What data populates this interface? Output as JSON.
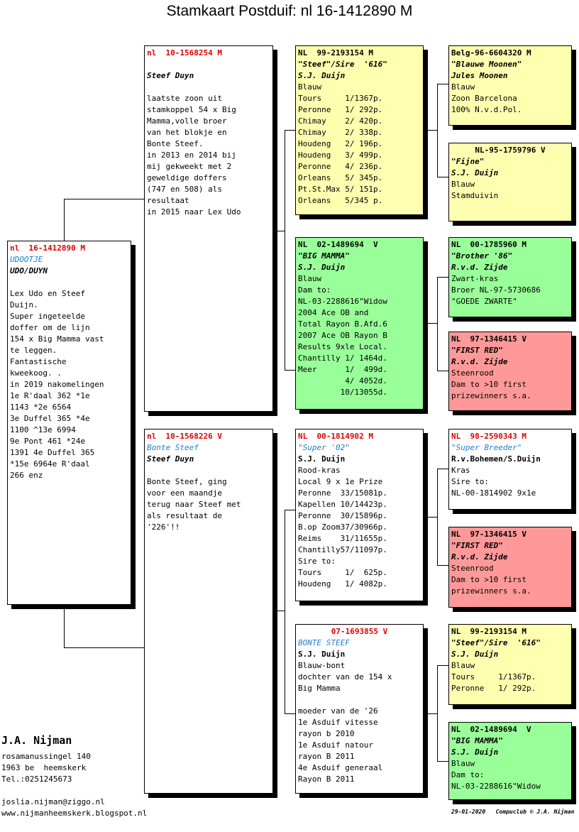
{
  "title": "Stamkaart Postduif: nl  16-1412890 M",
  "cards": {
    "main": [
      "nl  16-1412890 M",
      "UDOOTJE",
      "UDO/DUYN",
      "",
      "Lex Udo en Steef",
      "Duijn.",
      "Super ingeteelde",
      "doffer om de lijn",
      "154 x Big Mamma vast",
      "te leggen.",
      "Fantastische",
      "kweekoog. .",
      "in 2019 nakomelingen",
      "1e R'daal 362 *1e",
      "1143 *2e 6564",
      "3e Duffel 365 *4e",
      "1100 ^13e 6994",
      "9e Pont 461 *24e",
      "1391 4e Duffel 365",
      "*15e 6964e R'daal",
      "266 enz"
    ],
    "sire": [
      "nl  10-1568254 M",
      "",
      "Steef Duyn",
      "",
      "laatste zoon uit",
      "stamkoppel 54 x Big",
      "Mamma,volle broer",
      "van het blokje en",
      "Bonte Steef.",
      "in 2013 en 2014 bij",
      "mij gekweekt met 2",
      "geweldige doffers",
      "(747 en 508) als",
      "resultaat",
      "in 2015 naar Lex Udo"
    ],
    "dam": [
      "nl  10-1568226 V",
      "Bonte Steef",
      "Steef Duyn",
      "",
      "Bonte Steef, ging",
      "voor een maandje",
      "terug naar Steef met",
      "als resultaat de",
      "'226'!!"
    ],
    "ss": [
      "NL  99-2193154 M",
      "\"Steef\"/Sire  '616\"",
      "S.J. Duijn",
      "Blauw",
      "Tours     1/1367p.",
      "Peronne   1/ 292p.",
      "Chimay    2/ 420p.",
      "Chimay    2/ 338p.",
      "Houdeng   2/ 196p.",
      "Houdeng   3/ 499p.",
      "Peronne   4/ 236p.",
      "Orleans   5/ 345p.",
      "Pt.St.Max 5/ 151p.",
      "Orleans   5/345 p."
    ],
    "sd": [
      "NL  02-1489694  V",
      "\"BIG MAMMA\"",
      "S.J. Duijn",
      "Blauw",
      "Dam to:",
      "NL-03-2288616\"Widow",
      "2004 Ace OB and",
      "Total Rayon B.Afd.6",
      "2007 Ace OB Rayon B",
      "Results 9xle Local.",
      "Chantilly 1/ 1464d.",
      "Meer      1/  499d.",
      "          4/ 4052d.",
      "         10/13055d."
    ],
    "ds": [
      "NL  00-1814902 M",
      "\"Super '02\"",
      "S.J. Duijn",
      "Rood-kras",
      "Local 9 x 1e Prize",
      "Peronne  33/15081p.",
      "Kapellen 10/14423p.",
      "Peronne  30/15896p.",
      "B.op Zoom37/30966p.",
      "Reims    31/11655p.",
      "Chantilly57/11097p.",
      "Sire to:",
      "Tours     1/  625p.",
      "Houdeng   1/ 4082p."
    ],
    "dd": [
      "07-1693855 V",
      "BONTE STEEF",
      "S.J. Duijn",
      "Blauw-bont",
      "dochter van de 154 x",
      "Big Mamma",
      "",
      "moeder van de '26",
      "1e Asduif vitesse",
      "rayon b 2010",
      "1e Asduif natour",
      "rayon B 2011",
      "4e Asduif generaal",
      "Rayon B 2011"
    ],
    "sss": [
      "Belg-96-6604320 M",
      "\"Blauwe Moonen\"",
      "Jules Moonen",
      "Blauw",
      "Zoon Barcelona",
      "100% N.v.d.Pol."
    ],
    "ssd": [
      "NL-95-1759796 V",
      "\"Fijne\"",
      "S.J. Duijn",
      "Blauw",
      "Stamduivin"
    ],
    "sds": [
      "NL  00-1785960 M",
      "\"Brother '86\"",
      "R.v.d. Zijde",
      "Zwart-kras",
      "Broer NL-97-5730686",
      "\"GOEDE ZWARTE\""
    ],
    "sdd": [
      "NL  97-1346415 V",
      "\"FIRST RED\"",
      "R.v.d. Zijde",
      "Steenrood",
      "Dam to >10 first",
      "prizewinners s.a."
    ],
    "dss": [
      "NL  98-2590343 M",
      "\"Super Breeder\"",
      "R.v.Bohemen/S.Duijn",
      "Kras",
      "Sire to:",
      "NL-00-1814902 9x1e"
    ],
    "dsd": [
      "NL  97-1346415 V",
      "\"FIRST RED\"",
      "R.v.d. Zijde",
      "Steenrood",
      "Dam to >10 first",
      "prizewinners s.a."
    ],
    "dds": [
      "NL  99-2193154 M",
      "\"Steef\"/Sire  '616\"",
      "S.J. Duijn",
      "Blauw",
      "Tours     1/1367p.",
      "Peronne   1/ 292p."
    ],
    "ddd": [
      "NL  02-1489694  V",
      "\"BIG MAMMA\"",
      "S.J. Duijn",
      "Blauw",
      "Dam to:",
      "NL-03-2288616\"Widow"
    ]
  },
  "owner": {
    "name": "J.A. Nijman",
    "address": [
      "rosamanussingel 140",
      "1963 be  heemskerk",
      "Tel.:0251245673"
    ],
    "email": "joslia.nijman@ziggo.nl",
    "website": "www.nijmanheemskerk.blogspot.nl"
  },
  "stamp": "29-01-2020   Compuclub © J.A. Nijman",
  "colors": {
    "yellow": "#ffffb0",
    "green": "#99ff99",
    "pink": "#ff9999",
    "red_text": "#e00000",
    "blue_text": "#1e7fd0"
  }
}
